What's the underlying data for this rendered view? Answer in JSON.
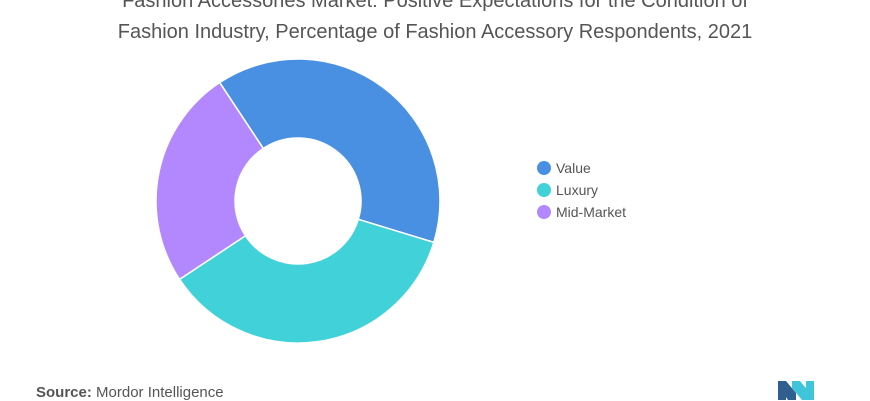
{
  "chart_data": {
    "type": "pie",
    "donut": true,
    "title_lines": [
      "Fashion Accessories Market: Positive Expectations for the Condition of",
      "Fashion Industry, Percentage of Fashion Accessory Respondents, 2021"
    ],
    "categories": [
      "Value",
      "Luxury",
      "Mid-Market"
    ],
    "values": [
      39,
      36,
      25
    ],
    "colors": [
      "#4a90e2",
      "#40d1d9",
      "#b388ff"
    ],
    "legend_position": "right"
  },
  "source": {
    "label": "Source:",
    "text": "Mordor Intelligence"
  },
  "logo": {
    "icon": "mordor-intelligence-logo",
    "colors": [
      "#2f5f8f",
      "#40c4d9"
    ]
  }
}
